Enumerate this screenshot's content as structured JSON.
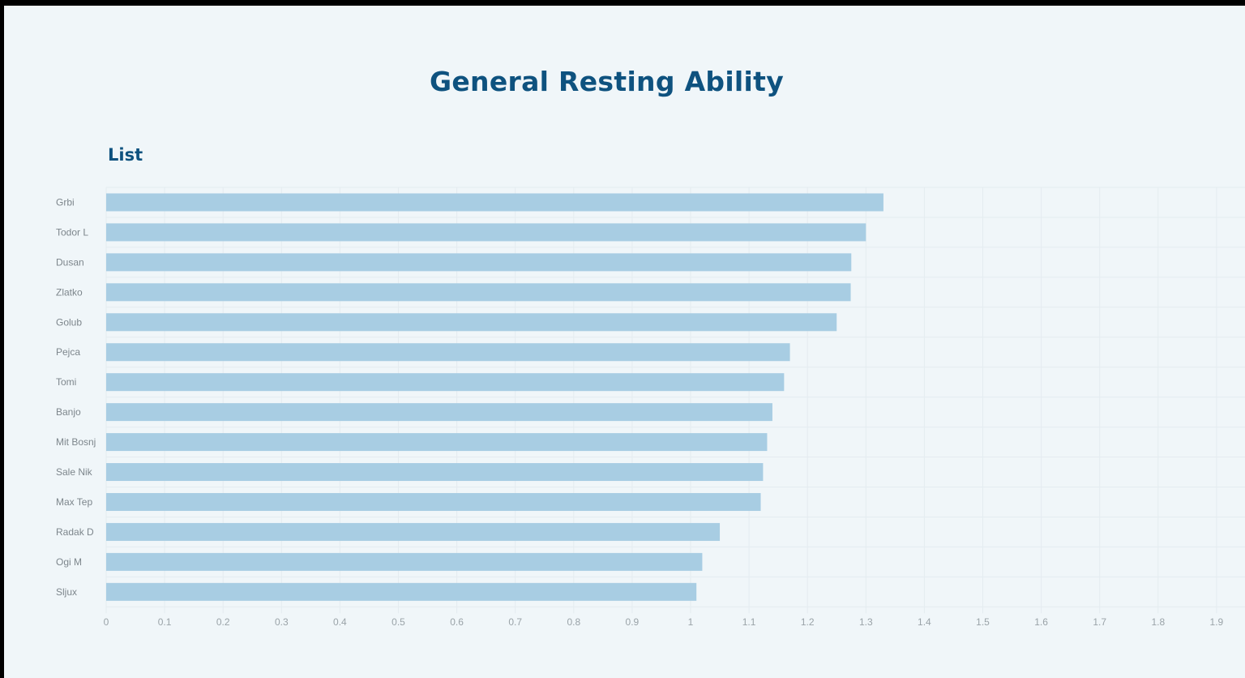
{
  "page": {
    "title": "General Resting Ability",
    "subtitle": "List"
  },
  "colors": {
    "background": "#f0f6f9",
    "frame": "#000000",
    "title": "#0e527f",
    "bar": "#a8cde3",
    "grid": "#e4ecf0",
    "tick_label": "#9aa3a8"
  },
  "chart_data": {
    "type": "bar",
    "orientation": "horizontal",
    "title": "General Resting Ability",
    "subtitle": "List",
    "xlabel": "",
    "ylabel": "",
    "xlim": [
      0,
      1.95
    ],
    "x_ticks": [
      "0",
      "0.1",
      "0.2",
      "0.3",
      "0.4",
      "0.5",
      "0.6",
      "0.7",
      "0.8",
      "0.9",
      "1",
      "1.1",
      "1.2",
      "1.3",
      "1.4",
      "1.5",
      "1.6",
      "1.7",
      "1.8",
      "1.9"
    ],
    "grid": true,
    "categories": [
      "Grbi",
      "Todor L",
      "Dusan",
      "Zlatko",
      "Golub",
      "Pejca",
      "Tomi",
      "Banjo",
      "Mit Bosnj",
      "Sale Nik",
      "Max Tep",
      "Radak D",
      "Ogi M",
      "Sljux"
    ],
    "values": [
      1.33,
      1.3,
      1.275,
      1.274,
      1.25,
      1.17,
      1.16,
      1.14,
      1.131,
      1.124,
      1.12,
      1.05,
      1.02,
      1.01
    ]
  }
}
